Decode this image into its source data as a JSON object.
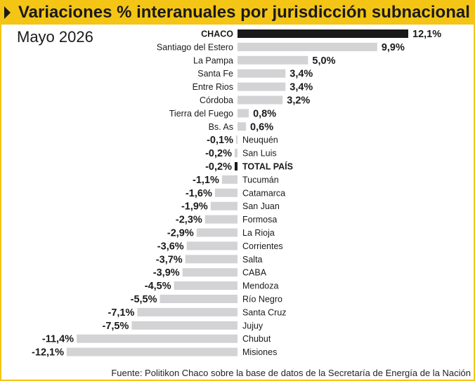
{
  "title": "Variaciones % interanuales por jurisdicción subnacional",
  "subtitle": "Mayo 2026",
  "source": "Fuente: Politikon Chaco sobre la base de datos de la  Secretaría de Energía de la Nación",
  "colors": {
    "accent": "#f4c514",
    "bar": "#d3d3d5",
    "highlight": "#1a1a1a",
    "text": "#1a1a1a"
  },
  "chart_data": {
    "type": "bar",
    "orientation": "horizontal",
    "categories": [
      "CHACO",
      "Santiago del Estero",
      "La Pampa",
      "Santa Fe",
      "Entre Rios",
      "Córdoba",
      "Tierra del Fuego",
      "Bs. As",
      "Neuquén",
      "San Luis",
      "TOTAL PAÍS",
      "Tucumán",
      "Catamarca",
      "San Juan",
      "Formosa",
      "La Rioja",
      "Corrientes",
      "Salta",
      "CABA",
      "Mendoza",
      "Río Negro",
      "Santa Cruz",
      "Jujuy",
      "Chubut",
      "Misiones"
    ],
    "values": [
      12.1,
      9.9,
      5.0,
      3.4,
      3.4,
      3.2,
      0.8,
      0.6,
      -0.1,
      -0.2,
      -0.2,
      -1.1,
      -1.6,
      -1.9,
      -2.3,
      -2.9,
      -3.6,
      -3.7,
      -3.9,
      -4.5,
      -5.5,
      -7.1,
      -7.5,
      -11.4,
      -12.1
    ],
    "value_labels": [
      "12,1%",
      "9,9%",
      "5,0%",
      "3,4%",
      "3,4%",
      "3,2%",
      "0,8%",
      "0,6%",
      "-0,1%",
      "-0,2%",
      "-0,2%",
      "-1,1%",
      "-1,6%",
      "-1,9%",
      "-2,3%",
      "-2,9%",
      "-3,6%",
      "-3,7%",
      "-3,9%",
      "-4,5%",
      "-5,5%",
      "-7,1%",
      "-7,5%",
      "-11,4%",
      "-12,1%"
    ],
    "highlighted": [
      "CHACO",
      "TOTAL PAÍS"
    ],
    "xlim": [
      -12.1,
      12.1
    ],
    "grid": false,
    "legend": "none"
  }
}
